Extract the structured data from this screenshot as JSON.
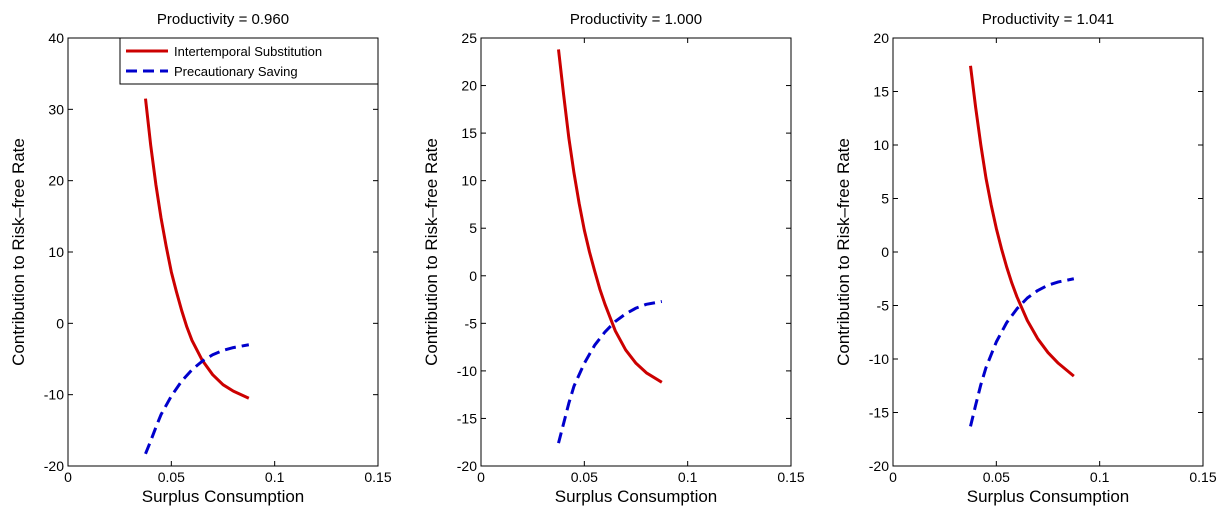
{
  "chart_data": [
    {
      "type": "line",
      "title": "Productivity = 0.960",
      "xlabel": "Surplus Consumption",
      "ylabel": "Contribution to Risk–free Rate",
      "xlim": [
        0,
        0.15
      ],
      "ylim": [
        -20,
        40
      ],
      "xticks": [
        "0",
        "0.05",
        "0.1",
        "0.15"
      ],
      "yticks": [
        "-20",
        "-10",
        "0",
        "10",
        "20",
        "30",
        "40"
      ],
      "legend": "top-right",
      "series": [
        {
          "name": "Intertemporal Substitution",
          "color": "#cc0000",
          "style": "solid",
          "x": [
            0.0375,
            0.04,
            0.0425,
            0.045,
            0.0475,
            0.05,
            0.0525,
            0.055,
            0.0575,
            0.06,
            0.065,
            0.07,
            0.075,
            0.08,
            0.0875
          ],
          "y": [
            31.5,
            25.0,
            19.5,
            14.8,
            10.8,
            7.2,
            4.4,
            1.8,
            -0.5,
            -2.4,
            -5.2,
            -7.2,
            -8.6,
            -9.5,
            -10.5
          ]
        },
        {
          "name": "Precautionary Saving",
          "color": "#0000cc",
          "style": "dashed",
          "x": [
            0.0375,
            0.04,
            0.0425,
            0.045,
            0.05,
            0.055,
            0.06,
            0.065,
            0.07,
            0.075,
            0.08,
            0.0875
          ],
          "y": [
            -18.3,
            -16.5,
            -14.6,
            -12.8,
            -10.2,
            -8.1,
            -6.5,
            -5.3,
            -4.4,
            -3.8,
            -3.4,
            -3.0
          ]
        }
      ]
    },
    {
      "type": "line",
      "title": "Productivity = 1.000",
      "xlabel": "Surplus Consumption",
      "ylabel": "Contribution to Risk–free Rate",
      "xlim": [
        0,
        0.15
      ],
      "ylim": [
        -20,
        25
      ],
      "xticks": [
        "0",
        "0.05",
        "0.1",
        "0.15"
      ],
      "yticks": [
        "-20",
        "-15",
        "-10",
        "-5",
        "0",
        "5",
        "10",
        "15",
        "20",
        "25"
      ],
      "series": [
        {
          "name": "Intertemporal Substitution",
          "color": "#cc0000",
          "style": "solid",
          "x": [
            0.0375,
            0.04,
            0.0425,
            0.045,
            0.0475,
            0.05,
            0.0525,
            0.055,
            0.0575,
            0.06,
            0.065,
            0.07,
            0.075,
            0.08,
            0.0875
          ],
          "y": [
            23.8,
            19.0,
            14.5,
            10.8,
            7.6,
            4.8,
            2.5,
            0.5,
            -1.4,
            -3.0,
            -5.8,
            -7.8,
            -9.2,
            -10.2,
            -11.2
          ]
        },
        {
          "name": "Precautionary Saving",
          "color": "#0000cc",
          "style": "dashed",
          "x": [
            0.0375,
            0.04,
            0.0425,
            0.045,
            0.05,
            0.055,
            0.06,
            0.065,
            0.07,
            0.075,
            0.08,
            0.0875
          ],
          "y": [
            -17.6,
            -15.5,
            -13.4,
            -11.6,
            -9.2,
            -7.3,
            -5.9,
            -4.8,
            -4.0,
            -3.4,
            -3.0,
            -2.7
          ]
        }
      ]
    },
    {
      "type": "line",
      "title": "Productivity = 1.041",
      "xlabel": "Surplus Consumption",
      "ylabel": "Contribution to Risk–free Rate",
      "xlim": [
        0,
        0.15
      ],
      "ylim": [
        -20,
        20
      ],
      "xticks": [
        "0",
        "0.05",
        "0.1",
        "0.15"
      ],
      "yticks": [
        "-20",
        "-15",
        "-10",
        "-5",
        "0",
        "5",
        "10",
        "15",
        "20"
      ],
      "series": [
        {
          "name": "Intertemporal Substitution",
          "color": "#cc0000",
          "style": "solid",
          "x": [
            0.0375,
            0.04,
            0.0425,
            0.045,
            0.0475,
            0.05,
            0.0525,
            0.055,
            0.0575,
            0.06,
            0.065,
            0.07,
            0.075,
            0.08,
            0.0875
          ],
          "y": [
            17.4,
            13.5,
            10.0,
            6.9,
            4.4,
            2.2,
            0.3,
            -1.4,
            -2.9,
            -4.2,
            -6.4,
            -8.1,
            -9.4,
            -10.4,
            -11.6
          ]
        },
        {
          "name": "Precautionary Saving",
          "color": "#0000cc",
          "style": "dashed",
          "x": [
            0.0375,
            0.04,
            0.0425,
            0.045,
            0.05,
            0.055,
            0.06,
            0.065,
            0.07,
            0.075,
            0.08,
            0.0875
          ],
          "y": [
            -16.3,
            -14.3,
            -12.4,
            -10.8,
            -8.4,
            -6.6,
            -5.3,
            -4.3,
            -3.6,
            -3.1,
            -2.8,
            -2.5
          ]
        }
      ]
    }
  ]
}
